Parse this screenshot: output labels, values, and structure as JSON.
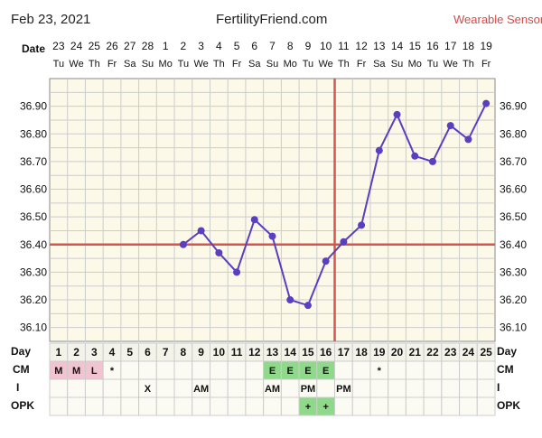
{
  "header": {
    "date": "Feb 23, 2021",
    "site": "FertilityFriend.com",
    "sensor": "Wearable Sensor"
  },
  "colors": {
    "plot_bg": "#fcf9e8",
    "grid": "#cccccc",
    "line": "#5a3fc0",
    "coverline": "#d9534f",
    "pink": "#f2c4d2",
    "green": "#8fd98a"
  },
  "labels": {
    "date_row": "Date",
    "day_row_left": "Day",
    "day_row_right": "Day",
    "cm_left": "CM",
    "cm_right": "CM",
    "i_left": "I",
    "i_right": "I",
    "opk_left": "OPK",
    "opk_right": "OPK"
  },
  "chart_data": {
    "type": "line",
    "dates": [
      "23",
      "24",
      "25",
      "26",
      "27",
      "28",
      "1",
      "2",
      "3",
      "4",
      "5",
      "6",
      "7",
      "8",
      "9",
      "10",
      "11",
      "12",
      "13",
      "14",
      "15",
      "16",
      "17",
      "18",
      "19"
    ],
    "weekdays": [
      "Tu",
      "We",
      "Th",
      "Fr",
      "Sa",
      "Su",
      "Mo",
      "Tu",
      "We",
      "Th",
      "Fr",
      "Sa",
      "Su",
      "Mo",
      "Tu",
      "We",
      "Th",
      "Fr",
      "Sa",
      "Su",
      "Mo",
      "Tu",
      "We",
      "Th",
      "Fr"
    ],
    "cycle_days": [
      1,
      2,
      3,
      4,
      5,
      6,
      7,
      8,
      9,
      10,
      11,
      12,
      13,
      14,
      15,
      16,
      17,
      18,
      19,
      20,
      21,
      22,
      23,
      24,
      25
    ],
    "yticks": [
      "36.90",
      "36.80",
      "36.70",
      "36.60",
      "36.50",
      "36.40",
      "36.30",
      "36.20",
      "36.10"
    ],
    "ylim": [
      36.05,
      37.0
    ],
    "series": [
      {
        "x": [
          8,
          9,
          10,
          11,
          12,
          13,
          14,
          15,
          16,
          17,
          18,
          19,
          20,
          21,
          22,
          23,
          24,
          25
        ],
        "values": [
          36.4,
          36.45,
          36.37,
          36.3,
          36.49,
          36.43,
          36.2,
          36.18,
          36.34,
          36.41,
          36.47,
          36.74,
          36.87,
          36.72,
          36.7,
          36.83,
          36.78,
          36.91
        ]
      }
    ],
    "coverline": 36.4,
    "ovulation_line_day": 16,
    "grid": true,
    "cm": [
      "M",
      "M",
      "L",
      "*",
      "",
      "",
      "",
      "",
      "",
      "",
      "",
      "",
      "E",
      "E",
      "E",
      "E",
      "",
      "",
      "*",
      "",
      "",
      "",
      "",
      "",
      ""
    ],
    "cm_colors": [
      "pink",
      "pink",
      "pink",
      "",
      "",
      "",
      "",
      "",
      "",
      "",
      "",
      "",
      "green",
      "green",
      "green",
      "green",
      "",
      "",
      "",
      "",
      "",
      "",
      "",
      "",
      ""
    ],
    "intercourse": [
      "",
      "",
      "",
      "",
      "",
      "X",
      "",
      "",
      "AM",
      "",
      "",
      "",
      "AM",
      "",
      "PM",
      "",
      "PM",
      "",
      "",
      "",
      "",
      "",
      "",
      "",
      ""
    ],
    "opk": [
      "",
      "",
      "",
      "",
      "",
      "",
      "",
      "",
      "",
      "",
      "",
      "",
      "",
      "",
      "+",
      "+",
      "",
      "",
      "",
      "",
      "",
      "",
      "",
      "",
      ""
    ],
    "opk_colors": [
      "",
      "",
      "",
      "",
      "",
      "",
      "",
      "",
      "",
      "",
      "",
      "",
      "",
      "",
      "green",
      "green",
      "",
      "",
      "",
      "",
      "",
      "",
      "",
      "",
      ""
    ]
  }
}
